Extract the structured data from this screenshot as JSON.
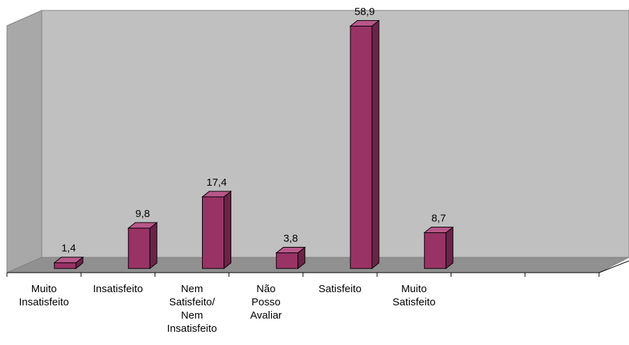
{
  "chart_data": {
    "type": "bar3d",
    "categories": [
      "Muito Insatisfeito",
      "Insatisfeito",
      "Nem Satisfeito/ Nem Insatisfeito",
      "Não Posso Avaliar",
      "Satisfeito",
      "Muito Satisfeito",
      null,
      null
    ],
    "values": [
      1.4,
      9.8,
      17.4,
      3.8,
      58.9,
      8.7,
      null,
      null
    ],
    "value_labels": [
      "1,4",
      "9,8",
      "17,4",
      "3,8",
      "58,9",
      "8,7",
      null,
      null
    ],
    "color": "#993366",
    "ylim": [
      0,
      60
    ]
  }
}
